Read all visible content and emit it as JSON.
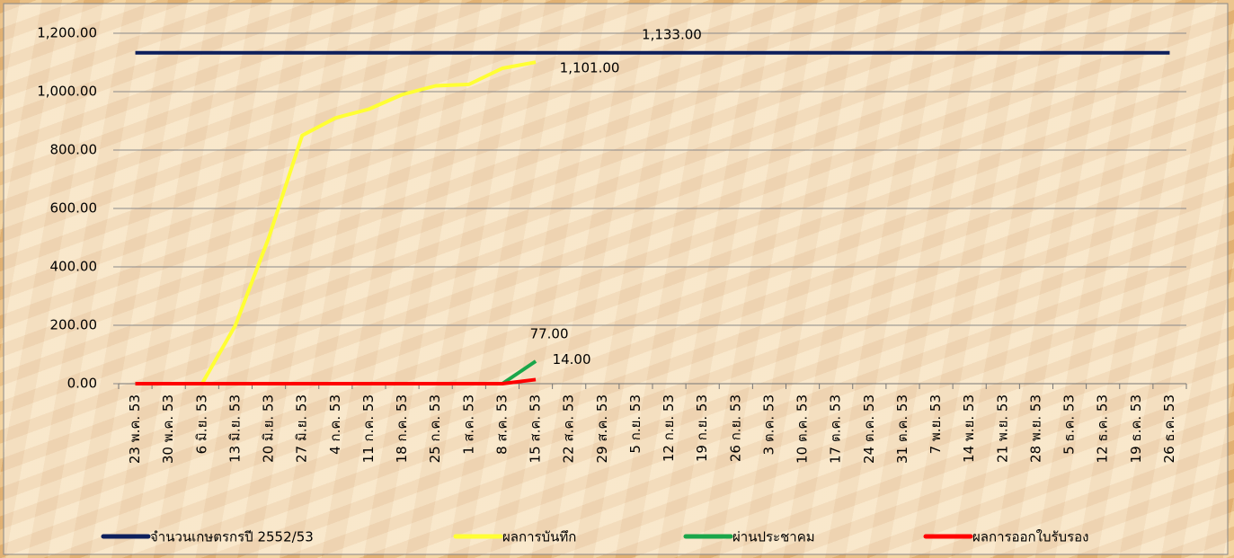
{
  "chart_data": {
    "type": "line",
    "categories": [
      "23 พ.ค. 53",
      "30 พ.ค. 53",
      "6 มิ.ย. 53",
      "13 มิ.ย. 53",
      "20 มิ.ย. 53",
      "27 มิ.ย. 53",
      "4 ก.ค. 53",
      "11 ก.ค. 53",
      "18 ก.ค. 53",
      "25 ก.ค. 53",
      "1 ส.ค. 53",
      "8 ส.ค. 53",
      "15 ส.ค. 53",
      "22 ส.ค. 53",
      "29 ส.ค. 53",
      "5 ก.ย. 53",
      "12 ก.ย. 53",
      "19 ก.ย. 53",
      "26 ก.ย. 53",
      "3 ต.ค. 53",
      "10 ต.ค. 53",
      "17 ต.ค. 53",
      "24 ต.ค. 53",
      "31 ต.ค. 53",
      "7 พ.ย. 53",
      "14 พ.ย. 53",
      "21 พ.ย. 53",
      "28 พ.ย. 53",
      "5 ธ.ค. 53",
      "12 ธ.ค. 53",
      "19 ธ.ค. 53",
      "26 ธ.ค. 53"
    ],
    "series": [
      {
        "name": "จำนวนเกษตรกรปี  2552/53",
        "color": "#0d1f5c",
        "values": [
          1133,
          1133,
          1133,
          1133,
          1133,
          1133,
          1133,
          1133,
          1133,
          1133,
          1133,
          1133,
          1133,
          1133,
          1133,
          1133,
          1133,
          1133,
          1133,
          1133,
          1133,
          1133,
          1133,
          1133,
          1133,
          1133,
          1133,
          1133,
          1133,
          1133,
          1133,
          1133
        ],
        "value_labels": [
          null,
          null,
          null,
          null,
          null,
          null,
          null,
          null,
          null,
          null,
          null,
          null,
          null,
          null,
          null,
          "1,133.00",
          null,
          null,
          null,
          null,
          null,
          null,
          null,
          null,
          null,
          null,
          null,
          null,
          null,
          null,
          null,
          null
        ]
      },
      {
        "name": "ผลการบันทึก",
        "color": "#ffff33",
        "values": [
          0,
          0,
          0,
          200,
          500,
          850,
          910,
          940,
          990,
          1020,
          1025,
          1080,
          1101,
          null,
          null,
          null,
          null,
          null,
          null,
          null,
          null,
          null,
          null,
          null,
          null,
          null,
          null,
          null,
          null,
          null,
          null,
          null
        ],
        "value_labels": [
          null,
          null,
          null,
          null,
          null,
          null,
          null,
          null,
          null,
          null,
          null,
          null,
          "1,101.00",
          null,
          null,
          null,
          null,
          null,
          null,
          null,
          null,
          null,
          null,
          null,
          null,
          null,
          null,
          null,
          null,
          null,
          null,
          null
        ]
      },
      {
        "name": "ผ่านประชาคม",
        "color": "#1aa64a",
        "values": [
          0,
          0,
          0,
          0,
          0,
          0,
          0,
          0,
          0,
          0,
          0,
          0,
          77,
          null,
          null,
          null,
          null,
          null,
          null,
          null,
          null,
          null,
          null,
          null,
          null,
          null,
          null,
          null,
          null,
          null,
          null,
          null
        ],
        "value_labels": [
          null,
          null,
          null,
          null,
          null,
          null,
          null,
          null,
          null,
          null,
          null,
          null,
          "77.00",
          null,
          null,
          null,
          null,
          null,
          null,
          null,
          null,
          null,
          null,
          null,
          null,
          null,
          null,
          null,
          null,
          null,
          null,
          null
        ]
      },
      {
        "name": "ผลการออกใบรับรอง",
        "color": "#ff0000",
        "values": [
          0,
          0,
          0,
          0,
          0,
          0,
          0,
          0,
          0,
          0,
          0,
          0,
          14,
          null,
          null,
          null,
          null,
          null,
          null,
          null,
          null,
          null,
          null,
          null,
          null,
          null,
          null,
          null,
          null,
          null,
          null,
          null
        ],
        "value_labels": [
          null,
          null,
          null,
          null,
          null,
          null,
          null,
          null,
          null,
          null,
          null,
          null,
          "14.00",
          null,
          null,
          null,
          null,
          null,
          null,
          null,
          null,
          null,
          null,
          null,
          null,
          null,
          null,
          null,
          null,
          null,
          null,
          null
        ]
      }
    ],
    "ylim": [
      0,
      1200
    ],
    "yticks": [
      {
        "value": 0,
        "label": "0.00"
      },
      {
        "value": 200,
        "label": "200.00"
      },
      {
        "value": 400,
        "label": "400.00"
      },
      {
        "value": 600,
        "label": "600.00"
      },
      {
        "value": 800,
        "label": "800.00"
      },
      {
        "value": 1000,
        "label": "1,000.00"
      },
      {
        "value": 1200,
        "label": "1,200.00"
      }
    ],
    "grid": true,
    "legend": "bottom"
  }
}
